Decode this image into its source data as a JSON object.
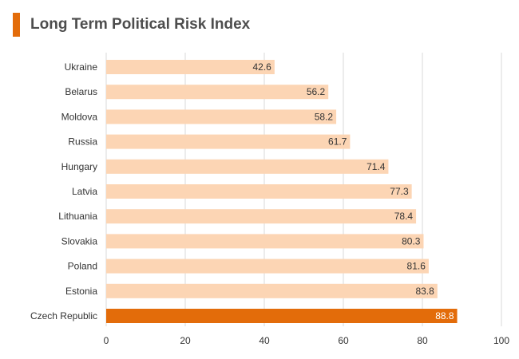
{
  "title": "Long Term Political Risk Index",
  "colors": {
    "bar": "#fcd5b4",
    "highlight": "#e36c0a",
    "grid": "#d9d9d9",
    "text": "#333333",
    "highlight_text": "#ffffff"
  },
  "chart_data": {
    "type": "bar",
    "orientation": "horizontal",
    "title": "Long Term Political Risk Index",
    "categories": [
      "Ukraine",
      "Belarus",
      "Moldova",
      "Russia",
      "Hungary",
      "Latvia",
      "Lithuania",
      "Slovakia",
      "Poland",
      "Estonia",
      "Czech Republic"
    ],
    "values": [
      42.6,
      56.2,
      58.2,
      61.7,
      71.4,
      77.3,
      78.4,
      80.3,
      81.6,
      83.8,
      88.8
    ],
    "value_labels": [
      "42.6",
      "56.2",
      "58.2",
      "61.7",
      "71.4",
      "77.3",
      "78.4",
      "80.3",
      "81.6",
      "83.8",
      "88.8"
    ],
    "highlight": "Czech Republic",
    "xlim": [
      0,
      100
    ],
    "xticks": [
      0,
      20,
      40,
      60,
      80,
      100
    ],
    "xtick_labels": [
      "0",
      "20",
      "40",
      "60",
      "80",
      "100"
    ],
    "xlabel": "",
    "ylabel": "",
    "grid": "vertical",
    "legend": "none"
  }
}
